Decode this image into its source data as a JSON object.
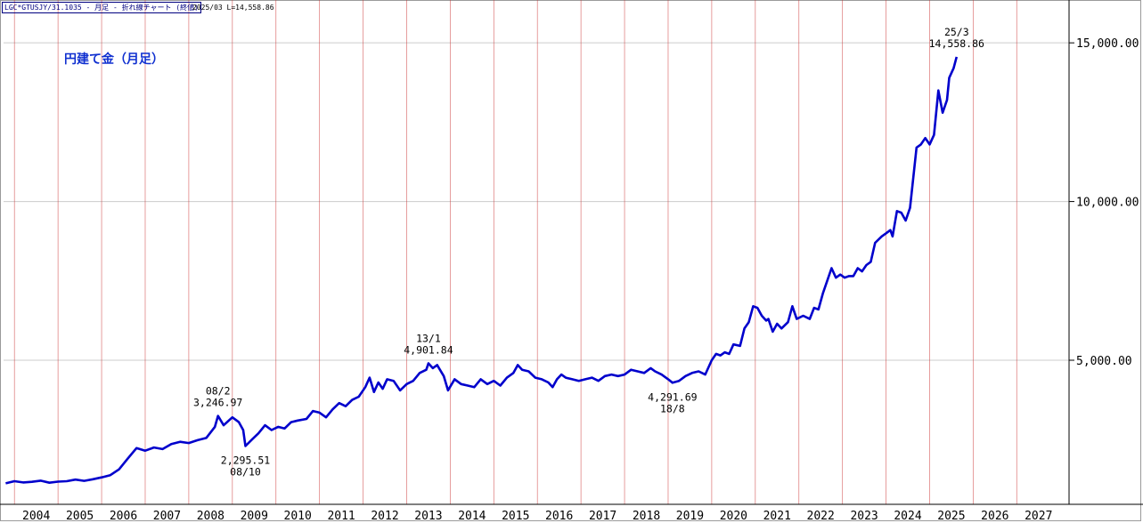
{
  "header": {
    "symbol": "LGC*GTUSJY/31.1035 - 月足 - 折れ線チャート (終値)",
    "info": "2025/03 L=14,558.86"
  },
  "chart_data": {
    "type": "line",
    "title": "円建て金（月足）",
    "xlabel": "",
    "ylabel": "",
    "x_tick_labels": [
      "2004",
      "2005",
      "2006",
      "2007",
      "2008",
      "2009",
      "2010",
      "2011",
      "2012",
      "2013",
      "2014",
      "2015",
      "2016",
      "2017",
      "2018",
      "2019",
      "2020",
      "2021",
      "2022",
      "2023",
      "2024",
      "2025",
      "2026",
      "2027"
    ],
    "y_tick_values": [
      5000,
      10000,
      15000
    ],
    "y_tick_labels": [
      "5,000.00",
      "10,000.00",
      "15,000.00"
    ],
    "xlim": [
      2003.25,
      2027.7
    ],
    "ylim": [
      460,
      16350
    ],
    "grid": true,
    "legend": "none",
    "colors": {
      "line": "#0000cc",
      "grid_vertical": "#cc3333",
      "grid_horizontal": "#cccccc",
      "title": "#1030d0"
    },
    "series": [
      {
        "values": [
          [
            2003.3,
            1120
          ],
          [
            2003.5,
            1190
          ],
          [
            2003.7,
            1150
          ],
          [
            2003.9,
            1170
          ],
          [
            2004.1,
            1205
          ],
          [
            2004.3,
            1140
          ],
          [
            2004.5,
            1175
          ],
          [
            2004.7,
            1190
          ],
          [
            2004.9,
            1240
          ],
          [
            2005.1,
            1200
          ],
          [
            2005.3,
            1250
          ],
          [
            2005.5,
            1310
          ],
          [
            2005.7,
            1380
          ],
          [
            2005.9,
            1560
          ],
          [
            2006.1,
            1900
          ],
          [
            2006.3,
            2230
          ],
          [
            2006.5,
            2150
          ],
          [
            2006.7,
            2250
          ],
          [
            2006.9,
            2200
          ],
          [
            2007.1,
            2360
          ],
          [
            2007.3,
            2430
          ],
          [
            2007.5,
            2390
          ],
          [
            2007.7,
            2480
          ],
          [
            2007.9,
            2550
          ],
          [
            2008.1,
            2900
          ],
          [
            2008.17,
            3246.97
          ],
          [
            2008.3,
            2950
          ],
          [
            2008.5,
            3200
          ],
          [
            2008.65,
            3050
          ],
          [
            2008.75,
            2800
          ],
          [
            2008.8,
            2295.51
          ],
          [
            2008.95,
            2500
          ],
          [
            2009.1,
            2700
          ],
          [
            2009.25,
            2950
          ],
          [
            2009.4,
            2800
          ],
          [
            2009.55,
            2900
          ],
          [
            2009.7,
            2850
          ],
          [
            2009.85,
            3050
          ],
          [
            2010.0,
            3100
          ],
          [
            2010.2,
            3150
          ],
          [
            2010.35,
            3400
          ],
          [
            2010.5,
            3350
          ],
          [
            2010.65,
            3200
          ],
          [
            2010.8,
            3450
          ],
          [
            2010.95,
            3650
          ],
          [
            2011.1,
            3550
          ],
          [
            2011.25,
            3750
          ],
          [
            2011.4,
            3850
          ],
          [
            2011.55,
            4150
          ],
          [
            2011.65,
            4450
          ],
          [
            2011.75,
            4000
          ],
          [
            2011.85,
            4300
          ],
          [
            2011.95,
            4100
          ],
          [
            2012.05,
            4400
          ],
          [
            2012.2,
            4350
          ],
          [
            2012.35,
            4050
          ],
          [
            2012.5,
            4250
          ],
          [
            2012.65,
            4350
          ],
          [
            2012.8,
            4600
          ],
          [
            2012.95,
            4700
          ],
          [
            2013.0,
            4901.84
          ],
          [
            2013.1,
            4750
          ],
          [
            2013.2,
            4850
          ],
          [
            2013.35,
            4500
          ],
          [
            2013.45,
            4050
          ],
          [
            2013.6,
            4400
          ],
          [
            2013.75,
            4250
          ],
          [
            2013.9,
            4200
          ],
          [
            2014.05,
            4150
          ],
          [
            2014.2,
            4400
          ],
          [
            2014.35,
            4250
          ],
          [
            2014.5,
            4350
          ],
          [
            2014.65,
            4200
          ],
          [
            2014.8,
            4450
          ],
          [
            2014.95,
            4600
          ],
          [
            2015.05,
            4850
          ],
          [
            2015.15,
            4700
          ],
          [
            2015.3,
            4650
          ],
          [
            2015.45,
            4450
          ],
          [
            2015.6,
            4400
          ],
          [
            2015.75,
            4300
          ],
          [
            2015.85,
            4150
          ],
          [
            2015.95,
            4400
          ],
          [
            2016.05,
            4550
          ],
          [
            2016.15,
            4450
          ],
          [
            2016.3,
            4400
          ],
          [
            2016.45,
            4350
          ],
          [
            2016.6,
            4400
          ],
          [
            2016.75,
            4450
          ],
          [
            2016.9,
            4350
          ],
          [
            2017.05,
            4500
          ],
          [
            2017.2,
            4550
          ],
          [
            2017.35,
            4500
          ],
          [
            2017.5,
            4550
          ],
          [
            2017.65,
            4700
          ],
          [
            2017.8,
            4650
          ],
          [
            2017.95,
            4600
          ],
          [
            2018.1,
            4750
          ],
          [
            2018.2,
            4650
          ],
          [
            2018.35,
            4550
          ],
          [
            2018.5,
            4400
          ],
          [
            2018.6,
            4291.69
          ],
          [
            2018.75,
            4350
          ],
          [
            2018.9,
            4500
          ],
          [
            2019.05,
            4600
          ],
          [
            2019.2,
            4650
          ],
          [
            2019.35,
            4550
          ],
          [
            2019.5,
            5000
          ],
          [
            2019.6,
            5200
          ],
          [
            2019.7,
            5150
          ],
          [
            2019.8,
            5250
          ],
          [
            2019.9,
            5200
          ],
          [
            2020.0,
            5500
          ],
          [
            2020.15,
            5450
          ],
          [
            2020.25,
            6000
          ],
          [
            2020.35,
            6200
          ],
          [
            2020.45,
            6700
          ],
          [
            2020.55,
            6650
          ],
          [
            2020.65,
            6400
          ],
          [
            2020.75,
            6250
          ],
          [
            2020.8,
            6300
          ],
          [
            2020.9,
            5900
          ],
          [
            2021.0,
            6150
          ],
          [
            2021.1,
            6000
          ],
          [
            2021.25,
            6200
          ],
          [
            2021.35,
            6700
          ],
          [
            2021.45,
            6300
          ],
          [
            2021.6,
            6400
          ],
          [
            2021.75,
            6300
          ],
          [
            2021.85,
            6650
          ],
          [
            2021.95,
            6600
          ],
          [
            2022.05,
            7100
          ],
          [
            2022.15,
            7500
          ],
          [
            2022.25,
            7900
          ],
          [
            2022.35,
            7600
          ],
          [
            2022.45,
            7700
          ],
          [
            2022.55,
            7600
          ],
          [
            2022.65,
            7650
          ],
          [
            2022.75,
            7650
          ],
          [
            2022.85,
            7900
          ],
          [
            2022.95,
            7800
          ],
          [
            2023.05,
            8000
          ],
          [
            2023.15,
            8100
          ],
          [
            2023.25,
            8700
          ],
          [
            2023.4,
            8900
          ],
          [
            2023.5,
            9000
          ],
          [
            2023.6,
            9100
          ],
          [
            2023.65,
            8900
          ],
          [
            2023.75,
            9700
          ],
          [
            2023.85,
            9650
          ],
          [
            2023.95,
            9400
          ],
          [
            2024.05,
            9800
          ],
          [
            2024.2,
            11700
          ],
          [
            2024.3,
            11800
          ],
          [
            2024.4,
            12000
          ],
          [
            2024.5,
            11800
          ],
          [
            2024.6,
            12100
          ],
          [
            2024.7,
            13500
          ],
          [
            2024.8,
            12800
          ],
          [
            2024.9,
            13200
          ],
          [
            2024.95,
            13900
          ],
          [
            2025.05,
            14200
          ],
          [
            2025.12,
            14558.86
          ]
        ]
      }
    ],
    "annotations": [
      {
        "x": 2008.17,
        "y": 3246.97,
        "date": "08/2",
        "value": "3,246.97",
        "position": "above"
      },
      {
        "x": 2008.8,
        "y": 2295.51,
        "date": "08/10",
        "value": "2,295.51",
        "position": "below"
      },
      {
        "x": 2013.0,
        "y": 4901.84,
        "date": "13/1",
        "value": "4,901.84",
        "position": "above"
      },
      {
        "x": 2018.6,
        "y": 4291.69,
        "date": "18/8",
        "value": "4,291.69",
        "position": "below"
      },
      {
        "x": 2025.12,
        "y": 14558.86,
        "date": "25/3",
        "value": "14,558.86",
        "position": "above"
      }
    ]
  }
}
